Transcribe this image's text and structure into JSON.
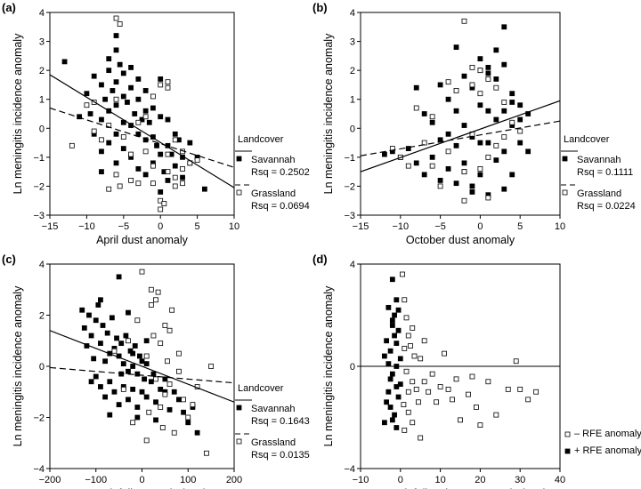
{
  "chart_data": [
    {
      "type": "scatter",
      "panel_label": "(a)",
      "xlabel": "April dust anomaly",
      "ylabel": "Ln meningitis incidence anomaly",
      "xlim": [
        -15,
        10
      ],
      "ylim": [
        -3,
        4
      ],
      "xticks": [
        "-15",
        "-10",
        "-5",
        "0",
        "5",
        "10"
      ],
      "yticks": [
        "-3",
        "-2",
        "-1",
        "0",
        "1",
        "2",
        "3",
        "4"
      ],
      "legend": {
        "title": "Landcover",
        "placement": "right",
        "entries": [
          {
            "label": "Savannah",
            "rsq": "Rsq = 0.2502",
            "marker": "filled-square",
            "line": "solid"
          },
          {
            "label": "Grassland",
            "rsq": "Rsq = 0.0694",
            "marker": "open-square",
            "line": "dashed"
          }
        ]
      },
      "fit_lines": [
        {
          "series": "Savannah",
          "style": "solid",
          "x": [
            -15,
            10
          ],
          "y": [
            1.85,
            -2.05
          ]
        },
        {
          "series": "Grassland",
          "style": "dashed",
          "x": [
            -15,
            10
          ],
          "y": [
            0.7,
            -1.35
          ]
        }
      ],
      "series": [
        {
          "name": "Savannah",
          "marker": "filled-square",
          "x": [
            -13,
            -11,
            -10,
            -9.5,
            -9,
            -9,
            -8,
            -8,
            -8,
            -7.5,
            -7,
            -7,
            -7,
            -6.5,
            -6,
            -6,
            -6,
            -6,
            -6,
            -5.5,
            -5,
            -5,
            -5,
            -5,
            -4.5,
            -4,
            -4,
            -4,
            -3.5,
            -3,
            -3,
            -3,
            -2.5,
            -2,
            -2,
            -2,
            -1.5,
            -1,
            -1,
            -1,
            -0.5,
            0,
            0,
            0,
            0.5,
            1,
            1,
            1,
            1.5,
            2,
            2,
            2.5,
            3,
            3,
            4,
            4,
            5,
            6,
            -6,
            -4,
            -8,
            -2,
            0,
            -7,
            -3
          ],
          "y": [
            2.3,
            0.4,
            1.2,
            0.5,
            1.8,
            -0.2,
            1.5,
            0.3,
            -0.8,
            1.0,
            2.0,
            0.6,
            -0.5,
            1.3,
            2.7,
            1.6,
            0.8,
            -0.2,
            -1.2,
            2.2,
            1.9,
            1.1,
            0.2,
            -0.7,
            0.9,
            1.4,
            0.1,
            -1.0,
            0.5,
            1.0,
            -0.2,
            -1.4,
            0.3,
            0.6,
            -0.4,
            -1.6,
            0.2,
            0.7,
            -0.3,
            -1.2,
            -0.6,
            1.7,
            0.4,
            -0.9,
            -1.5,
            0.3,
            -0.6,
            -1.8,
            -0.9,
            -0.2,
            -1.3,
            -0.4,
            -1.0,
            -1.7,
            -0.5,
            -1.2,
            -1.0,
            -2.1,
            3.2,
            2.1,
            -1.5,
            1.3,
            -2.2,
            2.4,
            1.7
          ]
        },
        {
          "name": "Grassland",
          "marker": "open-square",
          "x": [
            -12,
            -10,
            -9,
            -8,
            -7,
            -6,
            -6,
            -5.5,
            -5,
            -4,
            -3,
            -3,
            -2,
            -2,
            -1,
            -1,
            0,
            0,
            0,
            1,
            1,
            1,
            2,
            2,
            3,
            3,
            4,
            5,
            -6,
            -5.5,
            -4,
            0.5,
            1,
            2,
            -9,
            -7,
            -1,
            3
          ],
          "y": [
            -0.6,
            0.8,
            -0.1,
            -0.4,
            0.1,
            3.8,
            1.0,
            3.6,
            -0.3,
            -0.9,
            0.2,
            -1.9,
            -0.8,
            0.4,
            -1.3,
            1.1,
            1.5,
            -2.5,
            -2.8,
            1.6,
            -0.9,
            -1.5,
            -0.4,
            -2.0,
            -0.8,
            -1.4,
            -1.2,
            -1.1,
            -1.6,
            -2.0,
            -1.8,
            -2.6,
            1.4,
            -1.7,
            0.9,
            -2.1,
            -1.9,
            -1.9
          ]
        }
      ]
    },
    {
      "type": "scatter",
      "panel_label": "(b)",
      "xlabel": "October dust anomaly",
      "ylabel": "Ln meningitis incidence anomaly",
      "xlim": [
        -15,
        10
      ],
      "ylim": [
        -3,
        4
      ],
      "xticks": [
        "-15",
        "-10",
        "-5",
        "0",
        "5",
        "10"
      ],
      "yticks": [
        "-3",
        "-2",
        "-1",
        "0",
        "1",
        "2",
        "3",
        "4"
      ],
      "legend": {
        "title": "Landcover",
        "placement": "right",
        "entries": [
          {
            "label": "Savannah",
            "rsq": "Rsq = 0.1111",
            "marker": "filled-square",
            "line": "solid"
          },
          {
            "label": "Grassland",
            "rsq": "Rsq = 0.0224",
            "marker": "open-square",
            "line": "dashed"
          }
        ]
      },
      "fit_lines": [
        {
          "series": "Savannah",
          "style": "solid",
          "x": [
            -15,
            10
          ],
          "y": [
            -1.5,
            0.95
          ]
        },
        {
          "series": "Grassland",
          "style": "dashed",
          "x": [
            -15,
            10
          ],
          "y": [
            -0.95,
            0.25
          ]
        }
      ],
      "series": [
        {
          "name": "Savannah",
          "marker": "filled-square",
          "x": [
            -12,
            -11,
            -10,
            -9,
            -8,
            -8,
            -7,
            -7,
            -6,
            -6,
            -5,
            -5,
            -5,
            -4,
            -4,
            -4,
            -3,
            -3,
            -3,
            -2,
            -2,
            -2,
            -1,
            -1,
            -1,
            0,
            0,
            0,
            0,
            1,
            1,
            1,
            1,
            2,
            2,
            2,
            3,
            3,
            3,
            3,
            4,
            4,
            4,
            5,
            5,
            6,
            6,
            -3,
            -1,
            2,
            3,
            5,
            1,
            -2,
            0,
            4
          ],
          "y": [
            -0.9,
            -0.8,
            -1.0,
            -0.7,
            1.4,
            -1.2,
            0.5,
            -1.6,
            0.2,
            -1.0,
            1.5,
            -0.4,
            -1.8,
            1.0,
            -0.2,
            -1.4,
            0.6,
            -0.6,
            -1.9,
            1.8,
            0.1,
            -1.2,
            1.4,
            -0.3,
            -2.2,
            2.0,
            0.8,
            -0.5,
            -1.6,
            2.1,
            0.6,
            -0.5,
            -2.3,
            1.7,
            0.3,
            -1.1,
            3.5,
            2.2,
            0.6,
            -0.8,
            1.2,
            0.1,
            -1.6,
            0.8,
            -0.5,
            0.5,
            -0.8,
            2.8,
            -2.0,
            2.7,
            -2.1,
            0.3,
            1.9,
            -1.5,
            2.4,
            0.9
          ]
        },
        {
          "name": "Grassland",
          "marker": "open-square",
          "x": [
            -11,
            -9,
            -8,
            -7,
            -6,
            -5,
            -4,
            -4,
            -3,
            -2,
            -2,
            -1,
            -1,
            0,
            0,
            1,
            1,
            2,
            2,
            3,
            3,
            4,
            5,
            -2,
            -1,
            0,
            1,
            -6,
            -10
          ],
          "y": [
            -0.7,
            -1.3,
            0.7,
            -0.5,
            0.4,
            -2.0,
            1.6,
            -0.8,
            1.3,
            3.7,
            -1.5,
            2.1,
            -0.2,
            1.2,
            -1.4,
            1.7,
            -1.0,
            1.4,
            -0.6,
            0.9,
            -0.3,
            0.2,
            -0.1,
            -2.5,
            1.5,
            2.0,
            -2.4,
            -1.3,
            -1.0
          ]
        }
      ]
    },
    {
      "type": "scatter",
      "panel_label": "(c)",
      "xlabel": "Aug rainfall anomaly (mm)",
      "ylabel": "Ln meningitis incidence anomaly",
      "xlim": [
        -200,
        200
      ],
      "ylim": [
        -4,
        4
      ],
      "xticks": [
        "-200",
        "-100",
        "0",
        "100",
        "200"
      ],
      "yticks": [
        "-4",
        "-2",
        "0",
        "2",
        "4"
      ],
      "legend": {
        "title": "Landcover",
        "placement": "right",
        "entries": [
          {
            "label": "Savannah",
            "rsq": "Rsq = 0.1643",
            "marker": "filled-square",
            "line": "solid"
          },
          {
            "label": "Grassland",
            "rsq": "Rsq = 0.0135",
            "marker": "open-square",
            "line": "dashed"
          }
        ]
      },
      "fit_lines": [
        {
          "series": "Savannah",
          "style": "solid",
          "x": [
            -200,
            200
          ],
          "y": [
            1.4,
            -1.4
          ]
        },
        {
          "series": "Grassland",
          "style": "dashed",
          "x": [
            -200,
            200
          ],
          "y": [
            -0.05,
            -0.65
          ]
        }
      ],
      "series": [
        {
          "name": "Savannah",
          "marker": "filled-square",
          "x": [
            -130,
            -125,
            -120,
            -115,
            -110,
            -105,
            -100,
            -100,
            -95,
            -90,
            -90,
            -85,
            -80,
            -80,
            -75,
            -70,
            -70,
            -65,
            -60,
            -60,
            -55,
            -50,
            -50,
            -45,
            -40,
            -40,
            -35,
            -30,
            -30,
            -25,
            -20,
            -20,
            -15,
            -10,
            -10,
            -5,
            0,
            0,
            5,
            10,
            10,
            20,
            25,
            30,
            40,
            50,
            60,
            70,
            80,
            90,
            100,
            110,
            120,
            -110,
            -90,
            -70,
            -50,
            -30,
            -10,
            10,
            30,
            50,
            -45,
            -20
          ],
          "y": [
            2.2,
            1.5,
            0.8,
            2.0,
            1.2,
            0.3,
            1.8,
            -0.4,
            2.4,
            0.9,
            -0.8,
            1.6,
            0.2,
            -1.2,
            1.3,
            0.5,
            -0.6,
            1.9,
            0.7,
            -1.0,
            1.1,
            0.4,
            -1.5,
            0.9,
            0.1,
            -0.8,
            1.2,
            -0.2,
            -1.3,
            0.6,
            0.0,
            -0.9,
            0.8,
            -0.3,
            -1.6,
            0.4,
            0.2,
            -1.0,
            -0.5,
            0.1,
            -1.2,
            -0.6,
            -0.3,
            -1.4,
            -0.9,
            -0.5,
            -1.7,
            -1.0,
            -1.3,
            -1.8,
            -2.2,
            -1.6,
            -2.6,
            -0.6,
            2.6,
            -1.9,
            3.5,
            2.1,
            -2.0,
            1.0,
            -2.1,
            -1.0,
            -0.3,
            0.5
          ]
        },
        {
          "name": "Grassland",
          "marker": "open-square",
          "x": [
            -60,
            -40,
            -20,
            -10,
            0,
            10,
            15,
            20,
            25,
            30,
            35,
            40,
            45,
            50,
            55,
            60,
            65,
            70,
            80,
            90,
            100,
            110,
            120,
            140,
            150,
            20,
            40,
            60,
            80,
            10,
            -30,
            30,
            50
          ],
          "y": [
            0.6,
            -0.9,
            -2.2,
            1.8,
            3.7,
            0.4,
            -1.8,
            2.4,
            1.2,
            -0.5,
            2.9,
            0.9,
            -2.4,
            1.6,
            0.2,
            -0.7,
            2.2,
            -2.6,
            0.5,
            -1.3,
            -2.0,
            -1.5,
            -0.8,
            -3.4,
            0.0,
            3.0,
            -1.6,
            1.4,
            -0.2,
            -2.9,
            1.0,
            2.6,
            -1.1
          ]
        }
      ]
    },
    {
      "type": "scatter",
      "panel_label": "(d)",
      "xlabel": "Jan rainfall estimate anomaly (mm)",
      "ylabel": "Ln meningitis incidence anomaly",
      "xlim": [
        -10,
        40
      ],
      "ylim": [
        -4,
        4
      ],
      "xticks": [
        "-10",
        "0",
        "10",
        "20",
        "30",
        "40"
      ],
      "yticks": [
        "-4",
        "0",
        "4"
      ],
      "reference_line_y": 0,
      "legend": {
        "placement": "bottom-right",
        "entries": [
          {
            "label": "– RFE anomaly",
            "marker": "open-square"
          },
          {
            "label": "+ RFE anomaly",
            "marker": "filled-square"
          }
        ]
      },
      "series": [
        {
          "name": "– RFE anomaly",
          "marker": "open-square",
          "x": [
            0.5,
            1,
            1,
            1.5,
            2,
            2,
            2.5,
            3,
            3,
            3.5,
            4,
            4.5,
            5,
            6,
            7,
            8,
            9,
            10,
            11,
            12,
            13,
            14,
            15,
            17,
            18,
            19,
            20,
            22,
            24,
            27,
            29,
            30,
            32,
            34,
            1,
            2,
            3,
            5,
            6,
            0.8,
            1.5
          ],
          "y": [
            3.6,
            2.6,
            -2.5,
            1.9,
            1.2,
            -1.8,
            0.8,
            -0.6,
            -2.2,
            0.4,
            -0.9,
            -1.4,
            0.3,
            -0.6,
            -1.0,
            -0.3,
            -1.4,
            -0.8,
            0.5,
            -0.9,
            -1.3,
            -0.5,
            -2.1,
            -1.1,
            -0.4,
            -1.6,
            -2.3,
            -0.6,
            -1.9,
            -0.9,
            0.2,
            -0.9,
            -1.3,
            -1.0,
            0.7,
            -1.0,
            1.5,
            -2.8,
            1.0,
            -1.5,
            -0.2
          ]
        },
        {
          "name": "+ RFE anomaly",
          "marker": "filled-square",
          "x": [
            -4,
            -3.5,
            -3,
            -3,
            -2.5,
            -2.5,
            -2,
            -2,
            -2,
            -1.5,
            -1.5,
            -1,
            -1,
            -1,
            -0.5,
            -0.5,
            0,
            0,
            -3,
            -2,
            -1,
            -4,
            -2.5,
            -1.5,
            -0.5,
            -3.5,
            -1,
            -2
          ],
          "y": [
            -2.2,
            1.0,
            2.3,
            -1.0,
            0.6,
            -1.6,
            3.4,
            1.6,
            -0.3,
            2.0,
            -1.9,
            0.9,
            -0.8,
            -2.4,
            1.4,
            -1.2,
            0.3,
            -0.7,
            0.1,
            -2.1,
            2.6,
            0.4,
            -0.5,
            1.2,
            2.2,
            -1.4,
            0.0,
            1.8
          ]
        }
      ]
    }
  ]
}
